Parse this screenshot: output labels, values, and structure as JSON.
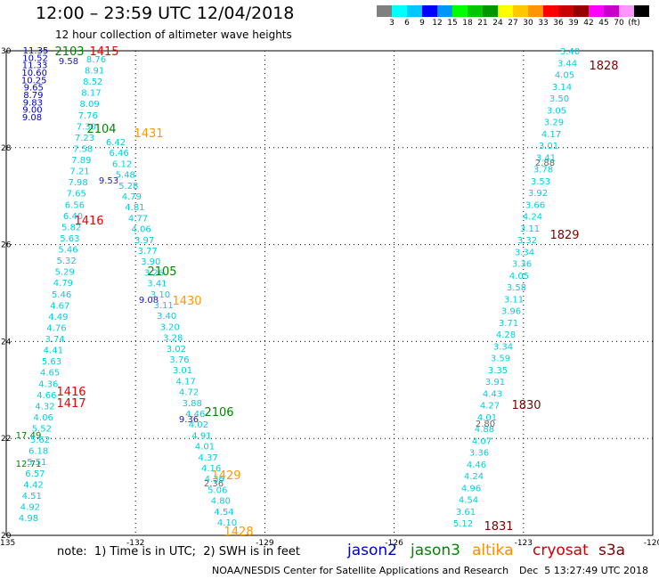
{
  "title": "12:00 – 23:59 UTC 12/04/2018",
  "subtitle": "12 hour collection of altimeter wave heights",
  "scale": {
    "colors": [
      "#808080",
      "#00ffff",
      "#00c8ff",
      "#0000ff",
      "#0096ff",
      "#00ff00",
      "#00c800",
      "#009600",
      "#ffff00",
      "#ffc800",
      "#ff9600",
      "#ff0000",
      "#c80000",
      "#960000",
      "#ff00ff",
      "#c800c8",
      "#ff96ff",
      "#000000"
    ],
    "labels": [
      "3",
      "6",
      "9",
      "12",
      "15",
      "18",
      "21",
      "24",
      "27",
      "30",
      "33",
      "36",
      "39",
      "42",
      "45",
      "70",
      "(ft)"
    ]
  },
  "axes": {
    "x_ticks": [
      "-135",
      "-132",
      "-129",
      "-126",
      "-123",
      "-120"
    ],
    "y_ticks": [
      "20",
      "22",
      "24",
      "26",
      "28",
      "30"
    ]
  },
  "footer": {
    "note": "note:  1) Time is in UTC;  2) SWH is in feet",
    "credit": "NOAA/NESDIS Center for Satellite Applications and Research",
    "timestamp": "Dec  5 13:27:49 UTC 2018"
  },
  "legend": [
    {
      "name": "jason2",
      "color": "#0000cc"
    },
    {
      "name": "jason3",
      "color": "#008800"
    },
    {
      "name": "altika",
      "color": "#ff8c00"
    },
    {
      "name": "cryosat",
      "color": "#cc0000"
    },
    {
      "name": "s3a",
      "color": "#800000"
    }
  ],
  "time_labels": [
    {
      "text": "1415",
      "color": "#ee0000"
    },
    {
      "text": "2103",
      "color": "#008800"
    },
    {
      "text": "2104",
      "color": "#008800"
    },
    {
      "text": "1431",
      "color": "#ff9900"
    },
    {
      "text": "1416",
      "color": "#ee0000"
    },
    {
      "text": "2105",
      "color": "#008800"
    },
    {
      "text": "1430",
      "color": "#ff9900"
    },
    {
      "text": "1416",
      "color": "#ee0000"
    },
    {
      "text": "1417",
      "color": "#ee0000"
    },
    {
      "text": "2106",
      "color": "#008800"
    },
    {
      "text": "1429",
      "color": "#ff9900"
    },
    {
      "text": "1428",
      "color": "#ff9900"
    },
    {
      "text": "1828",
      "color": "#800000"
    },
    {
      "text": "1829",
      "color": "#800000"
    },
    {
      "text": "1830",
      "color": "#800000"
    },
    {
      "text": "1831",
      "color": "#800000"
    }
  ],
  "tracks": [
    {
      "name": "jason2",
      "color": "#0000cc",
      "values": [
        "11.35",
        "10.52",
        "11.33",
        "10.60",
        "10.25",
        "9.65",
        "8.79",
        "9.83",
        "9.00",
        "9.08"
      ]
    },
    {
      "name": "jason3",
      "color": "#008800",
      "values": [
        "17.49",
        "12.71"
      ]
    },
    {
      "name": "cryosat-blue",
      "color": "#1a1acc",
      "values": [
        "9.58",
        "9.53",
        "9.08",
        "9.36"
      ]
    },
    {
      "name": "swh-cyan-west",
      "color": "#00d0e0",
      "values": [
        "8.76",
        "8.91",
        "8.52",
        "8.17",
        "8.09",
        "7.76",
        "7.30",
        "7.23",
        "7.58",
        "7.89",
        "7.21",
        "7.98",
        "7.65",
        "6.56",
        "6.40",
        "5.82",
        "5.63",
        "5.46",
        "5.32",
        "5.29",
        "4.79",
        "5.46",
        "4.67",
        "4.49",
        "4.76",
        "3.74",
        "4.41",
        "5.63",
        "4.65",
        "4.36",
        "4.66",
        "4.32",
        "4.06",
        "5.52",
        "5.62",
        "6.18",
        "5.51",
        "6.57",
        "4.42",
        "4.51",
        "4.92",
        "4.98"
      ]
    },
    {
      "name": "swh-cyan-mid",
      "color": "#00d0e0",
      "values": [
        "6.42",
        "6.46",
        "6.12",
        "5.48",
        "5.28",
        "4.79",
        "4.81",
        "4.77",
        "4.06",
        "3.97",
        "3.77",
        "3.90",
        "3.26",
        "3.41",
        "3.10",
        "3.11",
        "3.40",
        "3.20",
        "3.28",
        "3.02",
        "3.76",
        "3.01",
        "4.17",
        "4.72",
        "3.88",
        "4.46",
        "4.02",
        "4.91",
        "4.01",
        "4.37",
        "4.16",
        "4.36",
        "5.06",
        "4.80",
        "4.54",
        "4.10"
      ]
    },
    {
      "name": "swh-cyan-east",
      "color": "#00d0e0",
      "values": [
        "3.40",
        "3.44",
        "4.05",
        "3.14",
        "3.50",
        "3.05",
        "3.29",
        "4.17",
        "3.01",
        "3.41",
        "3.78",
        "3.53",
        "3.92",
        "3.66",
        "4.24",
        "3.11",
        "3.32",
        "3.34",
        "3.36",
        "4.05",
        "3.58",
        "3.11",
        "3.96",
        "3.71",
        "4.28",
        "3.34",
        "3.59",
        "3.35",
        "3.91",
        "4.43",
        "4.27",
        "4.01",
        "4.88",
        "4.07",
        "3.36",
        "4.46",
        "4.24",
        "4.96",
        "4.54",
        "3.61",
        "5.12"
      ]
    },
    {
      "name": "swh-gray",
      "color": "#666666",
      "values": [
        "2.88",
        "2.80",
        "2.36"
      ]
    }
  ]
}
